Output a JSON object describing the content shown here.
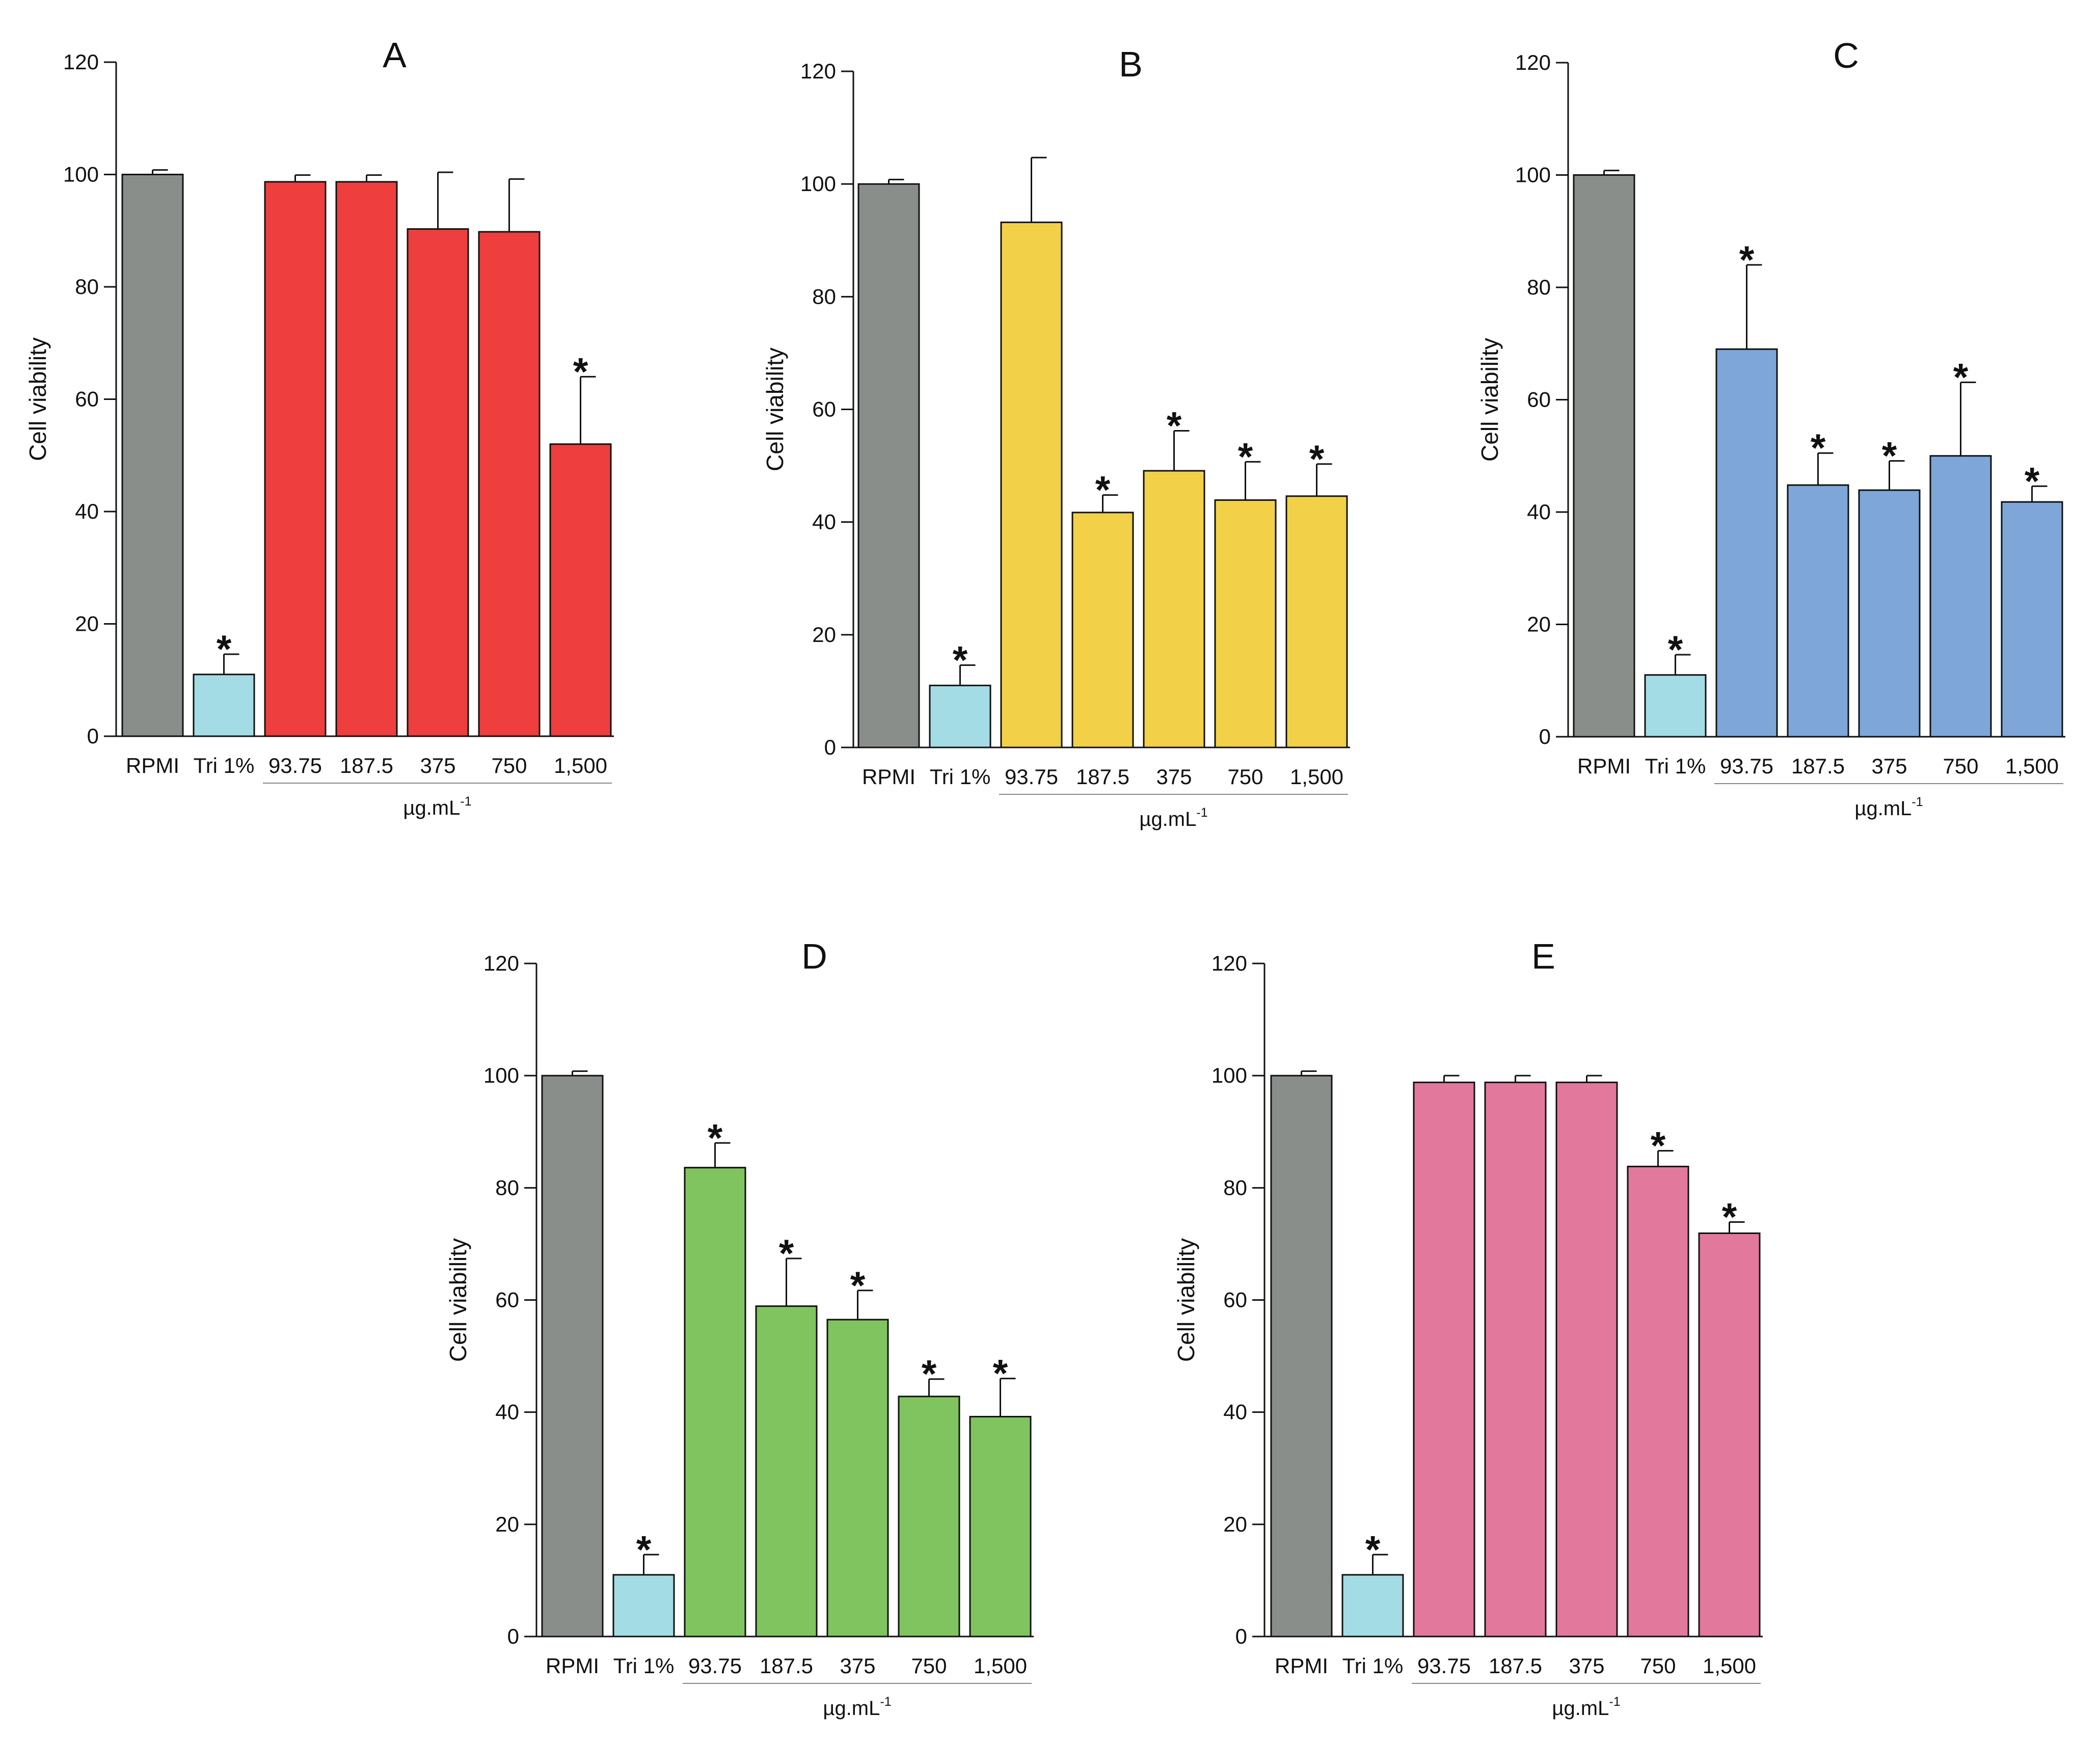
{
  "figure_description_colors": {
    "control": "#8a8e8a",
    "positive_control": "#a4dce6",
    "bar_outline": "#111111"
  },
  "chart_data": [
    {
      "type": "bar",
      "panel": "A",
      "title": "A",
      "ylabel": "Cell viability",
      "xlabel": "",
      "ylim": [
        0,
        120
      ],
      "yticks": [
        0,
        20,
        40,
        60,
        80,
        100,
        120
      ],
      "categories": [
        "RPMI",
        "Tri 1%",
        "93.75",
        "187.5",
        "375",
        "750",
        "1,500"
      ],
      "values": [
        100,
        11,
        98.7,
        98.7,
        90.3,
        89.8,
        52
      ],
      "errors": [
        0.8,
        3.6,
        1.2,
        1.2,
        10.1,
        9.4,
        12
      ],
      "significant": [
        false,
        true,
        false,
        false,
        false,
        false,
        true
      ],
      "star_label": "*",
      "bar_colors": [
        "#8a8e8a",
        "#a4dce6",
        "#ee3e3e",
        "#ee3e3e",
        "#ee3e3e",
        "#ee3e3e",
        "#ee3e3e"
      ],
      "concentration_unit": "µg.mL",
      "concentration_unit_exponent": "-1"
    },
    {
      "type": "bar",
      "panel": "B",
      "title": "B",
      "ylabel": "Cell viability",
      "xlabel": "",
      "ylim": [
        0,
        120
      ],
      "yticks": [
        0,
        20,
        40,
        60,
        80,
        100,
        120
      ],
      "categories": [
        "RPMI",
        "Tri 1%",
        "93.75",
        "187.5",
        "375",
        "750",
        "1,500"
      ],
      "values": [
        100,
        11,
        93.2,
        41.7,
        49.1,
        43.9,
        44.6
      ],
      "errors": [
        0.8,
        3.6,
        11.5,
        3.1,
        7.1,
        6.8,
        5.7
      ],
      "significant": [
        false,
        true,
        false,
        true,
        true,
        true,
        true
      ],
      "star_label": "*",
      "bar_colors": [
        "#8a8e8a",
        "#a4dce6",
        "#f2d148",
        "#f2d148",
        "#f2d148",
        "#f2d148",
        "#f2d148"
      ],
      "concentration_unit": "µg.mL",
      "concentration_unit_exponent": "-1"
    },
    {
      "type": "bar",
      "panel": "C",
      "title": "C",
      "ylabel": "Cell viability",
      "xlabel": "",
      "ylim": [
        0,
        120
      ],
      "yticks": [
        0,
        20,
        40,
        60,
        80,
        100,
        120
      ],
      "categories": [
        "RPMI",
        "Tri 1%",
        "93.75",
        "187.5",
        "375",
        "750",
        "1,500"
      ],
      "values": [
        100,
        11,
        69,
        44.8,
        43.9,
        50,
        41.8
      ],
      "errors": [
        0.8,
        3.6,
        15,
        5.7,
        5.2,
        13.1,
        2.8
      ],
      "significant": [
        false,
        true,
        true,
        true,
        true,
        true,
        true
      ],
      "star_label": "*",
      "bar_colors": [
        "#8a8e8a",
        "#a4dce6",
        "#7ea6d8",
        "#7ea6d8",
        "#7ea6d8",
        "#7ea6d8",
        "#7ea6d8"
      ],
      "concentration_unit": "µg.mL",
      "concentration_unit_exponent": "-1"
    },
    {
      "type": "bar",
      "panel": "D",
      "title": "D",
      "ylabel": "Cell viability",
      "xlabel": "",
      "ylim": [
        0,
        120
      ],
      "yticks": [
        0,
        20,
        40,
        60,
        80,
        100,
        120
      ],
      "categories": [
        "RPMI",
        "Tri 1%",
        "93.75",
        "187.5",
        "375",
        "750",
        "1,500"
      ],
      "values": [
        100,
        11,
        83.6,
        58.9,
        56.5,
        42.8,
        39.2
      ],
      "errors": [
        0.8,
        3.6,
        4.4,
        8.5,
        5.2,
        3.1,
        6.8
      ],
      "significant": [
        false,
        true,
        true,
        true,
        true,
        true,
        true
      ],
      "star_label": "*",
      "bar_colors": [
        "#8a8e8a",
        "#a4dce6",
        "#7fc45e",
        "#7fc45e",
        "#7fc45e",
        "#7fc45e",
        "#7fc45e"
      ],
      "concentration_unit": "µg.mL",
      "concentration_unit_exponent": "-1"
    },
    {
      "type": "bar",
      "panel": "E",
      "title": "E",
      "ylabel": "Cell viability",
      "xlabel": "",
      "ylim": [
        0,
        120
      ],
      "yticks": [
        0,
        20,
        40,
        60,
        80,
        100,
        120
      ],
      "categories": [
        "RPMI",
        "Tri 1%",
        "93.75",
        "187.5",
        "375",
        "750",
        "1,500"
      ],
      "values": [
        100,
        11,
        98.8,
        98.8,
        98.8,
        83.8,
        71.9
      ],
      "errors": [
        0.8,
        3.6,
        1.2,
        1.2,
        1.2,
        2.8,
        2.0
      ],
      "significant": [
        false,
        true,
        false,
        false,
        false,
        true,
        true
      ],
      "star_label": "*",
      "bar_colors": [
        "#8a8e8a",
        "#a4dce6",
        "#e2789c",
        "#e2789c",
        "#e2789c",
        "#e2789c",
        "#e2789c"
      ],
      "concentration_unit": "µg.mL",
      "concentration_unit_exponent": "-1"
    }
  ]
}
